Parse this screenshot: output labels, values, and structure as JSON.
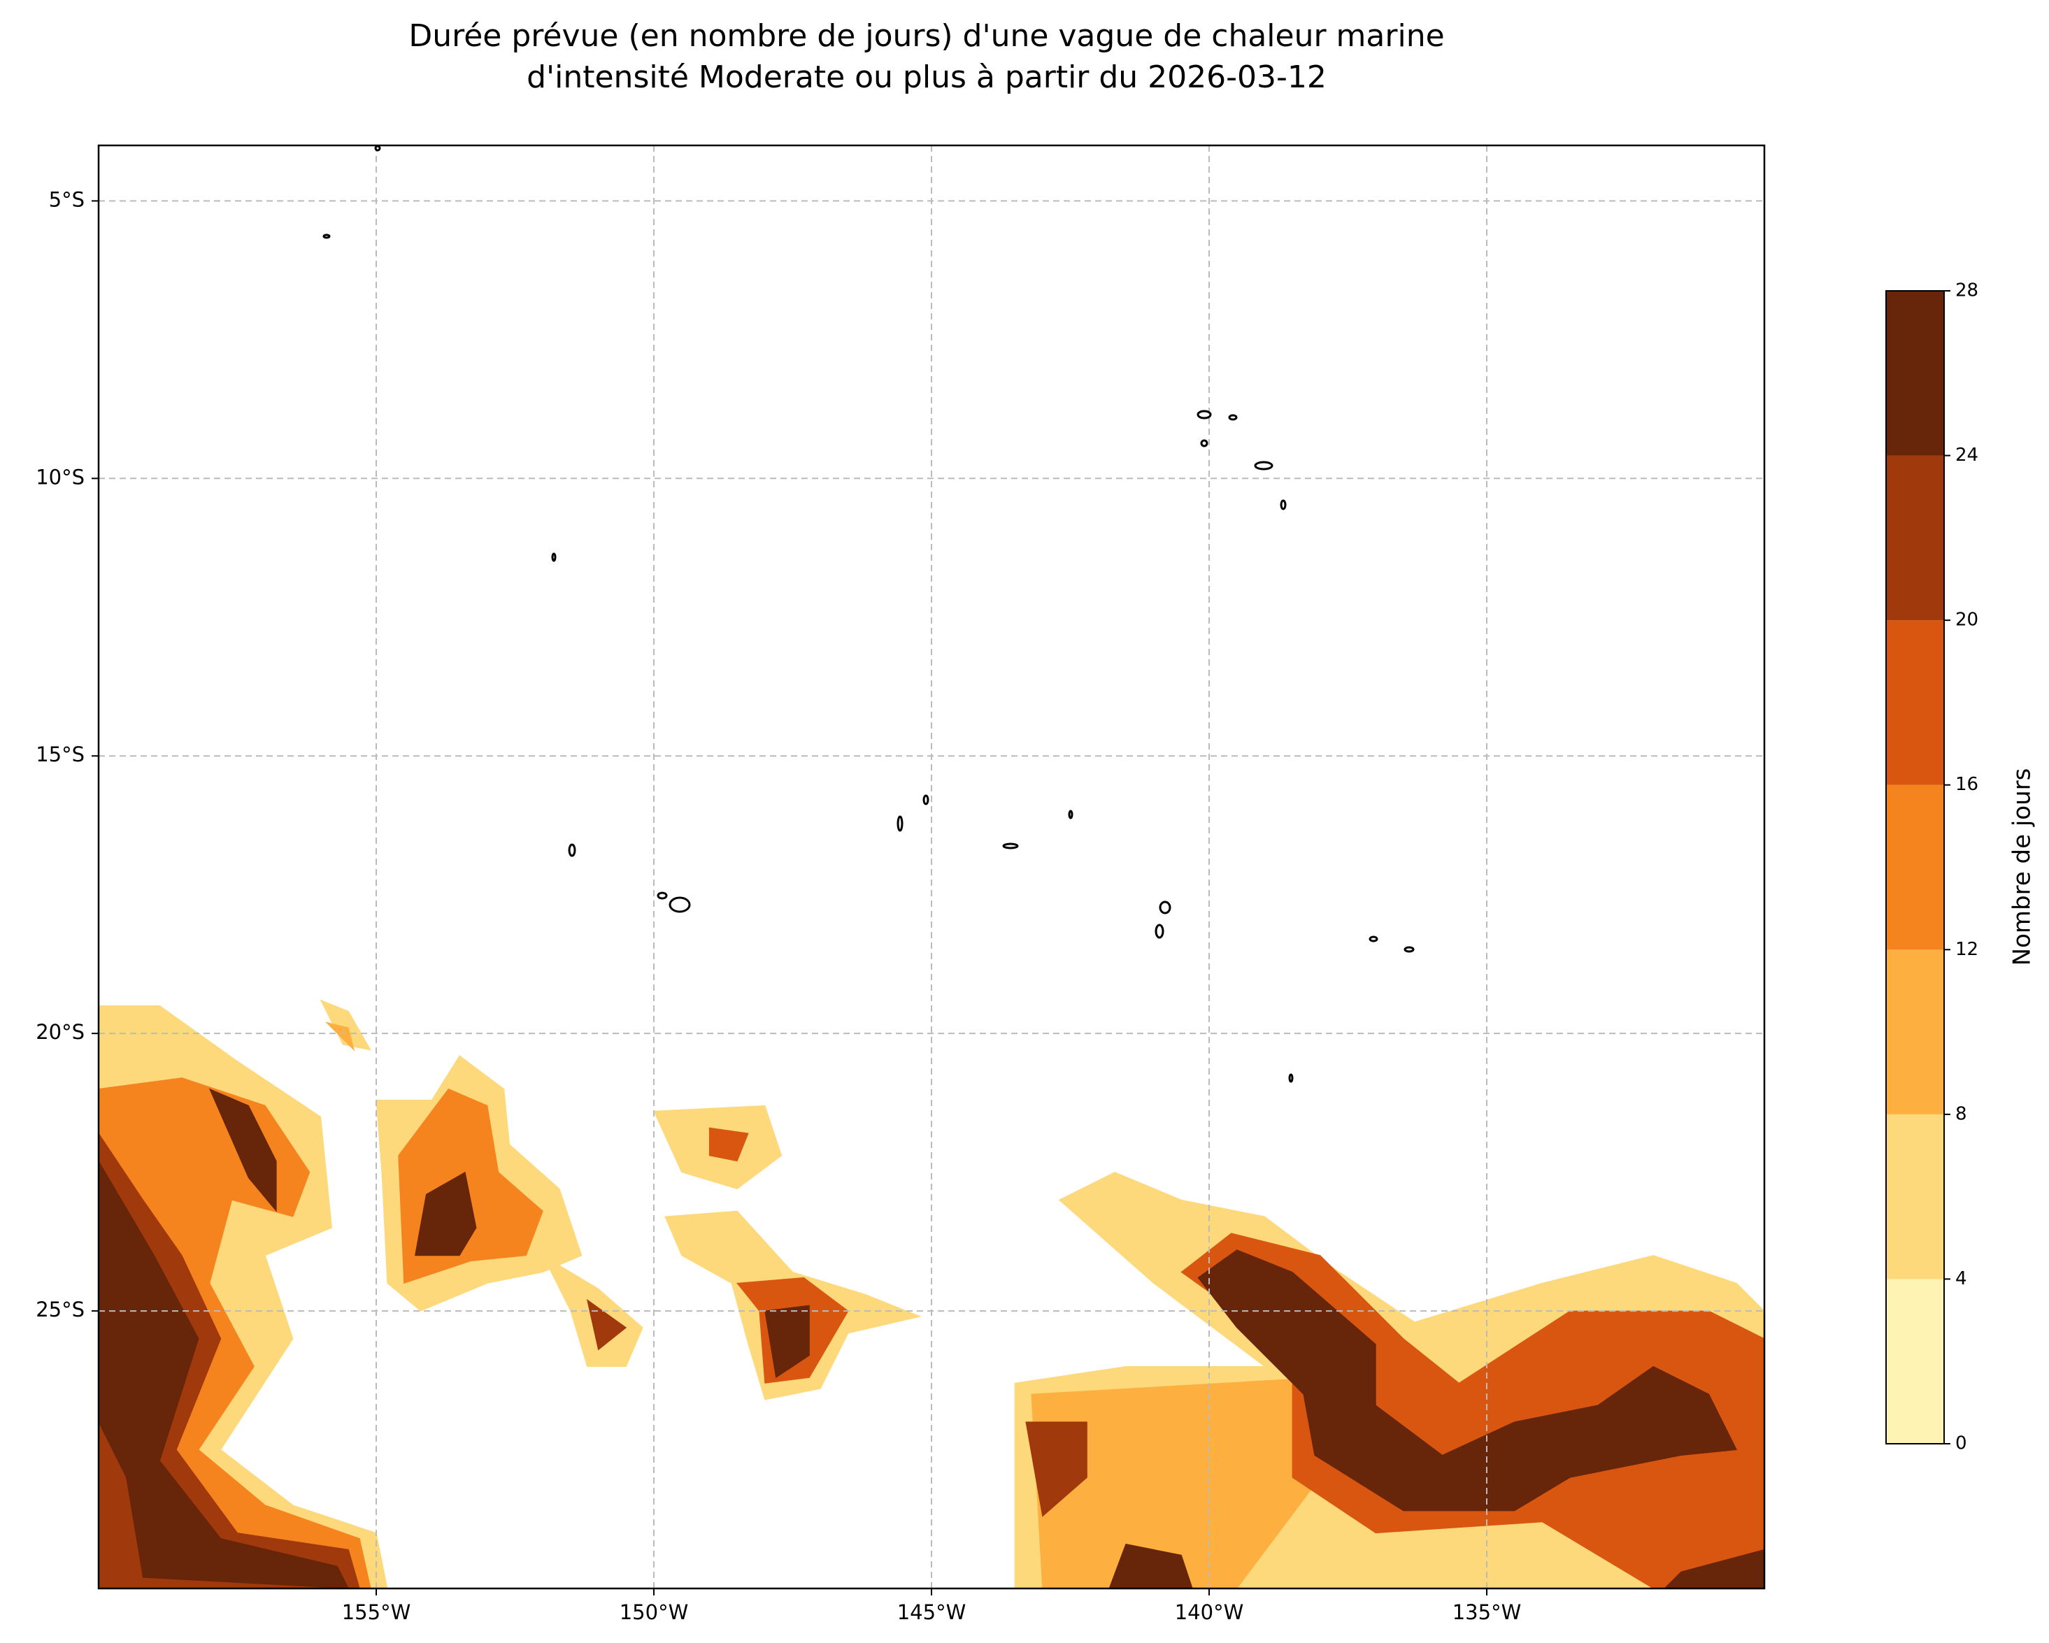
{
  "chart_data": {
    "type": "filled-contour-map",
    "title": "Durée prévue (en nombre de jours) d'une vague de chaleur marine",
    "subtitle": "d'intensité Moderate ou plus à partir du 2026-03-12",
    "xlim": [
      -160,
      -130
    ],
    "ylim": [
      -30,
      -4
    ],
    "xticks": [
      {
        "value": -155,
        "label": "155°W"
      },
      {
        "value": -150,
        "label": "150°W"
      },
      {
        "value": -145,
        "label": "145°W"
      },
      {
        "value": -140,
        "label": "140°W"
      },
      {
        "value": -135,
        "label": "135°W"
      }
    ],
    "yticks": [
      {
        "value": -5,
        "label": "5°S"
      },
      {
        "value": -10,
        "label": "10°S"
      },
      {
        "value": -15,
        "label": "15°S"
      },
      {
        "value": -20,
        "label": "20°S"
      },
      {
        "value": -25,
        "label": "25°S"
      }
    ],
    "grid": true,
    "colorbar": {
      "label": "Nombre de jours",
      "ticks": [
        0,
        4,
        8,
        12,
        16,
        20,
        24,
        28
      ]
    },
    "fill_levels": [
      {
        "color": "#fff3b4",
        "areas": []
      },
      {
        "color": "#fdd97c",
        "areas": [
          {
            "lon": [
              -160,
              -158.9,
              -157.5,
              -156,
              -155.8,
              -157,
              -156.5,
              -157.8,
              -156.5,
              -155,
              -154.8,
              -160
            ],
            "lat": [
              -19.5,
              -19.5,
              -20.5,
              -21.5,
              -23.5,
              -24,
              -25.5,
              -27.5,
              -28.5,
              -29,
              -30,
              -30
            ]
          },
          {
            "lon": [
              -155,
              -154,
              -153.5,
              -152.7,
              -152.6,
              -151.7,
              -151.3,
              -152,
              -153,
              -154.2,
              -154.8,
              -154.9
            ],
            "lat": [
              -21.2,
              -21.2,
              -20.4,
              -21,
              -22,
              -22.8,
              -24,
              -24.3,
              -24.5,
              -25,
              -24.5,
              -22.5
            ]
          },
          {
            "lon": [
              -152,
              -151,
              -150.2,
              -150.5,
              -151.2,
              -151.5
            ],
            "lat": [
              -24,
              -24.6,
              -25.3,
              -26,
              -26,
              -25
            ]
          },
          {
            "lon": [
              -150,
              -148,
              -147.7,
              -148.5,
              -149.5
            ],
            "lat": [
              -21.4,
              -21.3,
              -22.2,
              -22.8,
              -22.5
            ]
          },
          {
            "lon": [
              -149.8,
              -148.5,
              -147.5,
              -146.2,
              -145.2,
              -146.5,
              -147,
              -148,
              -148.3,
              -148.6,
              -149.5
            ],
            "lat": [
              -23.3,
              -23.2,
              -24.3,
              -24.7,
              -25.1,
              -25.4,
              -26.4,
              -26.6,
              -25.6,
              -24.5,
              -24
            ]
          },
          {
            "lon": [
              -141.7,
              -140.5,
              -139,
              -137.8,
              -136.3,
              -134,
              -132,
              -130.5,
              -130,
              -130,
              -143.5,
              -143.5,
              -141.5,
              -139,
              -141,
              -142.7
            ],
            "lat": [
              -22.5,
              -23,
              -23.3,
              -24.2,
              -25.2,
              -24.5,
              -24,
              -24.5,
              -25,
              -30,
              -30,
              -26.3,
              -26,
              -26,
              -24.5,
              -23
            ]
          },
          {
            "lon": [
              -156,
              -155.5,
              -155.1,
              -155.6
            ],
            "lat": [
              -19.4,
              -19.6,
              -20.3,
              -20.2
            ]
          }
        ]
      },
      {
        "color": "#fdb03f",
        "areas": [
          {
            "lon": [
              -143.2,
              -138,
              -138,
              -139.5,
              -143
            ],
            "lat": [
              -26.5,
              -26.2,
              -28,
              -30,
              -30
            ]
          },
          {
            "lon": [
              -155.9,
              -155.5,
              -155.4
            ],
            "lat": [
              -19.8,
              -19.9,
              -20.3
            ]
          }
        ]
      },
      {
        "color": "#f5841f",
        "areas": [
          {
            "lon": [
              -160,
              -158.5,
              -157,
              -156.2,
              -156.5,
              -157.6,
              -158,
              -157.2,
              -158.2,
              -157,
              -155.3,
              -155.1,
              -160
            ],
            "lat": [
              -21,
              -20.8,
              -21.3,
              -22.5,
              -23.3,
              -23,
              -24.5,
              -26,
              -27.5,
              -28.5,
              -29.1,
              -30,
              -30
            ]
          },
          {
            "lon": [
              -154.6,
              -153.7,
              -153,
              -152.8,
              -152,
              -152.3,
              -153.3,
              -154.5
            ],
            "lat": [
              -22.2,
              -21,
              -21.3,
              -22.5,
              -23.2,
              -24,
              -24.1,
              -24.5
            ]
          }
        ]
      },
      {
        "color": "#d95610",
        "areas": [
          {
            "lon": [
              -149,
              -148.3,
              -148.5,
              -149
            ],
            "lat": [
              -21.7,
              -21.8,
              -22.3,
              -22.2
            ]
          },
          {
            "lon": [
              -148.5,
              -147.3,
              -146.5,
              -147.2,
              -148,
              -148.1
            ],
            "lat": [
              -24.5,
              -24.4,
              -25,
              -26.2,
              -26.3,
              -25
            ]
          },
          {
            "lon": [
              -139.6,
              -138,
              -136.5,
              -135.5,
              -133.5,
              -131,
              -130,
              -130,
              -132,
              -134,
              -137,
              -138.5,
              -138.5,
              -139.8,
              -140.5
            ],
            "lat": [
              -23.6,
              -24,
              -25.5,
              -26.3,
              -25,
              -25,
              -25.5,
              -30,
              -30,
              -28.8,
              -29,
              -28,
              -26.3,
              -24.8,
              -24.3
            ]
          }
        ]
      },
      {
        "color": "#a0390b",
        "areas": [
          {
            "lon": [
              -160,
              -159.2,
              -158.5,
              -157.8,
              -158.6,
              -157.5,
              -155.5,
              -155.3,
              -160
            ],
            "lat": [
              -21.8,
              -23,
              -24,
              -25.5,
              -27.5,
              -29,
              -29.3,
              -30,
              -30
            ]
          },
          {
            "lon": [
              -151.2,
              -150.5,
              -151
            ],
            "lat": [
              -24.8,
              -25.3,
              -25.7
            ]
          },
          {
            "lon": [
              -143.3,
              -142.2,
              -142.2,
              -143
            ],
            "lat": [
              -27,
              -27,
              -28,
              -28.7
            ]
          }
        ]
      },
      {
        "color": "#67250a",
        "areas": [
          {
            "lon": [
              -160,
              -159,
              -158.2,
              -158.9,
              -157.8,
              -155.7,
              -155.5,
              -159.2,
              -159.5,
              -160
            ],
            "lat": [
              -22.3,
              -24,
              -25.5,
              -27.7,
              -29.1,
              -29.6,
              -30,
              -29.8,
              -28,
              -27
            ]
          },
          {
            "lon": [
              -158,
              -157.3,
              -156.8,
              -156.8,
              -157.3
            ],
            "lat": [
              -21,
              -21.3,
              -22.3,
              -23.2,
              -22.6
            ]
          },
          {
            "lon": [
              -154.1,
              -153.4,
              -153.2,
              -153.5,
              -154.3
            ],
            "lat": [
              -22.9,
              -22.5,
              -23.5,
              -24,
              -24
            ]
          },
          {
            "lon": [
              -148,
              -147.2,
              -147.2,
              -147.8
            ],
            "lat": [
              -25,
              -24.9,
              -25.8,
              -26.2
            ]
          },
          {
            "lon": [
              -139.5,
              -138.5,
              -137,
              -137,
              -135.8,
              -134.5,
              -133,
              -132,
              -131,
              -130.5,
              -131.5,
              -133.5,
              -134.5,
              -136.5,
              -138.1,
              -138.3,
              -139.5,
              -140.2
            ],
            "lat": [
              -23.9,
              -24.3,
              -25.6,
              -26.7,
              -27.6,
              -27,
              -26.7,
              -26,
              -26.5,
              -27.5,
              -27.6,
              -28,
              -28.6,
              -28.6,
              -27.6,
              -26.5,
              -25.3,
              -24.4
            ]
          },
          {
            "lon": [
              -141.5,
              -140.5,
              -140.3,
              -141.8
            ],
            "lat": [
              -29.2,
              -29.4,
              -30,
              -30
            ]
          },
          {
            "lon": [
              -131.5,
              -130,
              -130,
              -131.8
            ],
            "lat": [
              -29.7,
              -29.3,
              -30,
              -30
            ]
          }
        ]
      }
    ]
  }
}
